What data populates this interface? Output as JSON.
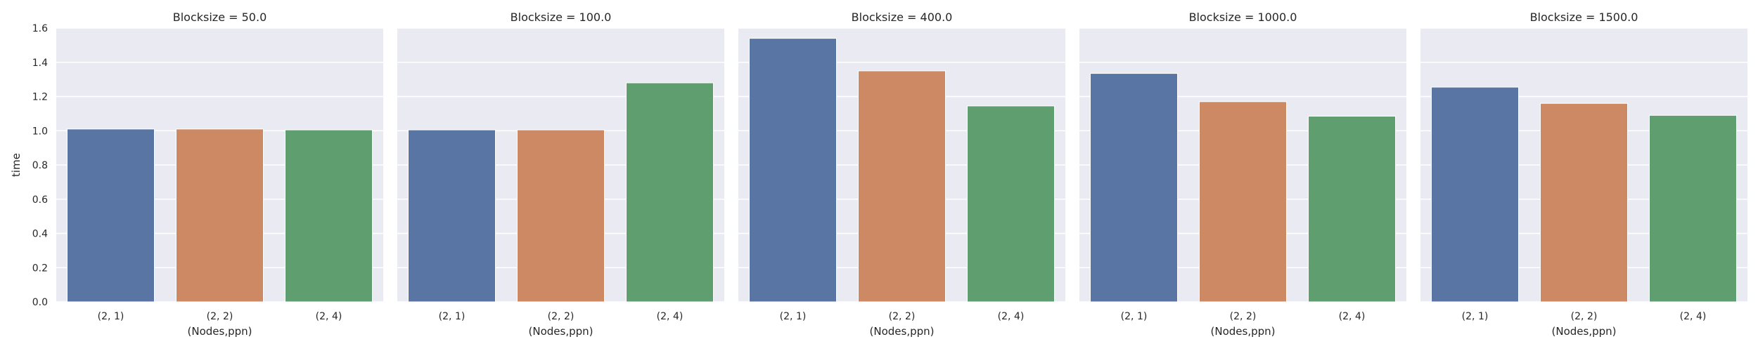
{
  "chart_data": {
    "type": "bar",
    "layout": "facet-grid",
    "ylabel": "time",
    "xlabel": "(Nodes,ppn)",
    "ylim": [
      0,
      1.6
    ],
    "yticks": [
      "0.0",
      "0.2",
      "0.4",
      "0.6",
      "0.8",
      "1.0",
      "1.2",
      "1.4",
      "1.6"
    ],
    "ytick_values": [
      0,
      0.2,
      0.4,
      0.6,
      0.8,
      1.0,
      1.2,
      1.4,
      1.6
    ],
    "categories": [
      "(2, 1)",
      "(2, 2)",
      "(2, 4)"
    ],
    "colors": [
      "#5875a4",
      "#cc8963",
      "#5f9e6e"
    ],
    "background": "#eaeaf2",
    "grid": true,
    "panels": [
      {
        "title": "Blocksize = 50.0",
        "values": [
          1.01,
          1.01,
          1.005
        ]
      },
      {
        "title": "Blocksize = 100.0",
        "values": [
          1.005,
          1.005,
          1.28
        ]
      },
      {
        "title": "Blocksize = 400.0",
        "values": [
          1.54,
          1.35,
          1.145
        ]
      },
      {
        "title": "Blocksize = 1000.0",
        "values": [
          1.335,
          1.17,
          1.085
        ]
      },
      {
        "title": "Blocksize = 1500.0",
        "values": [
          1.255,
          1.16,
          1.09
        ]
      }
    ]
  }
}
